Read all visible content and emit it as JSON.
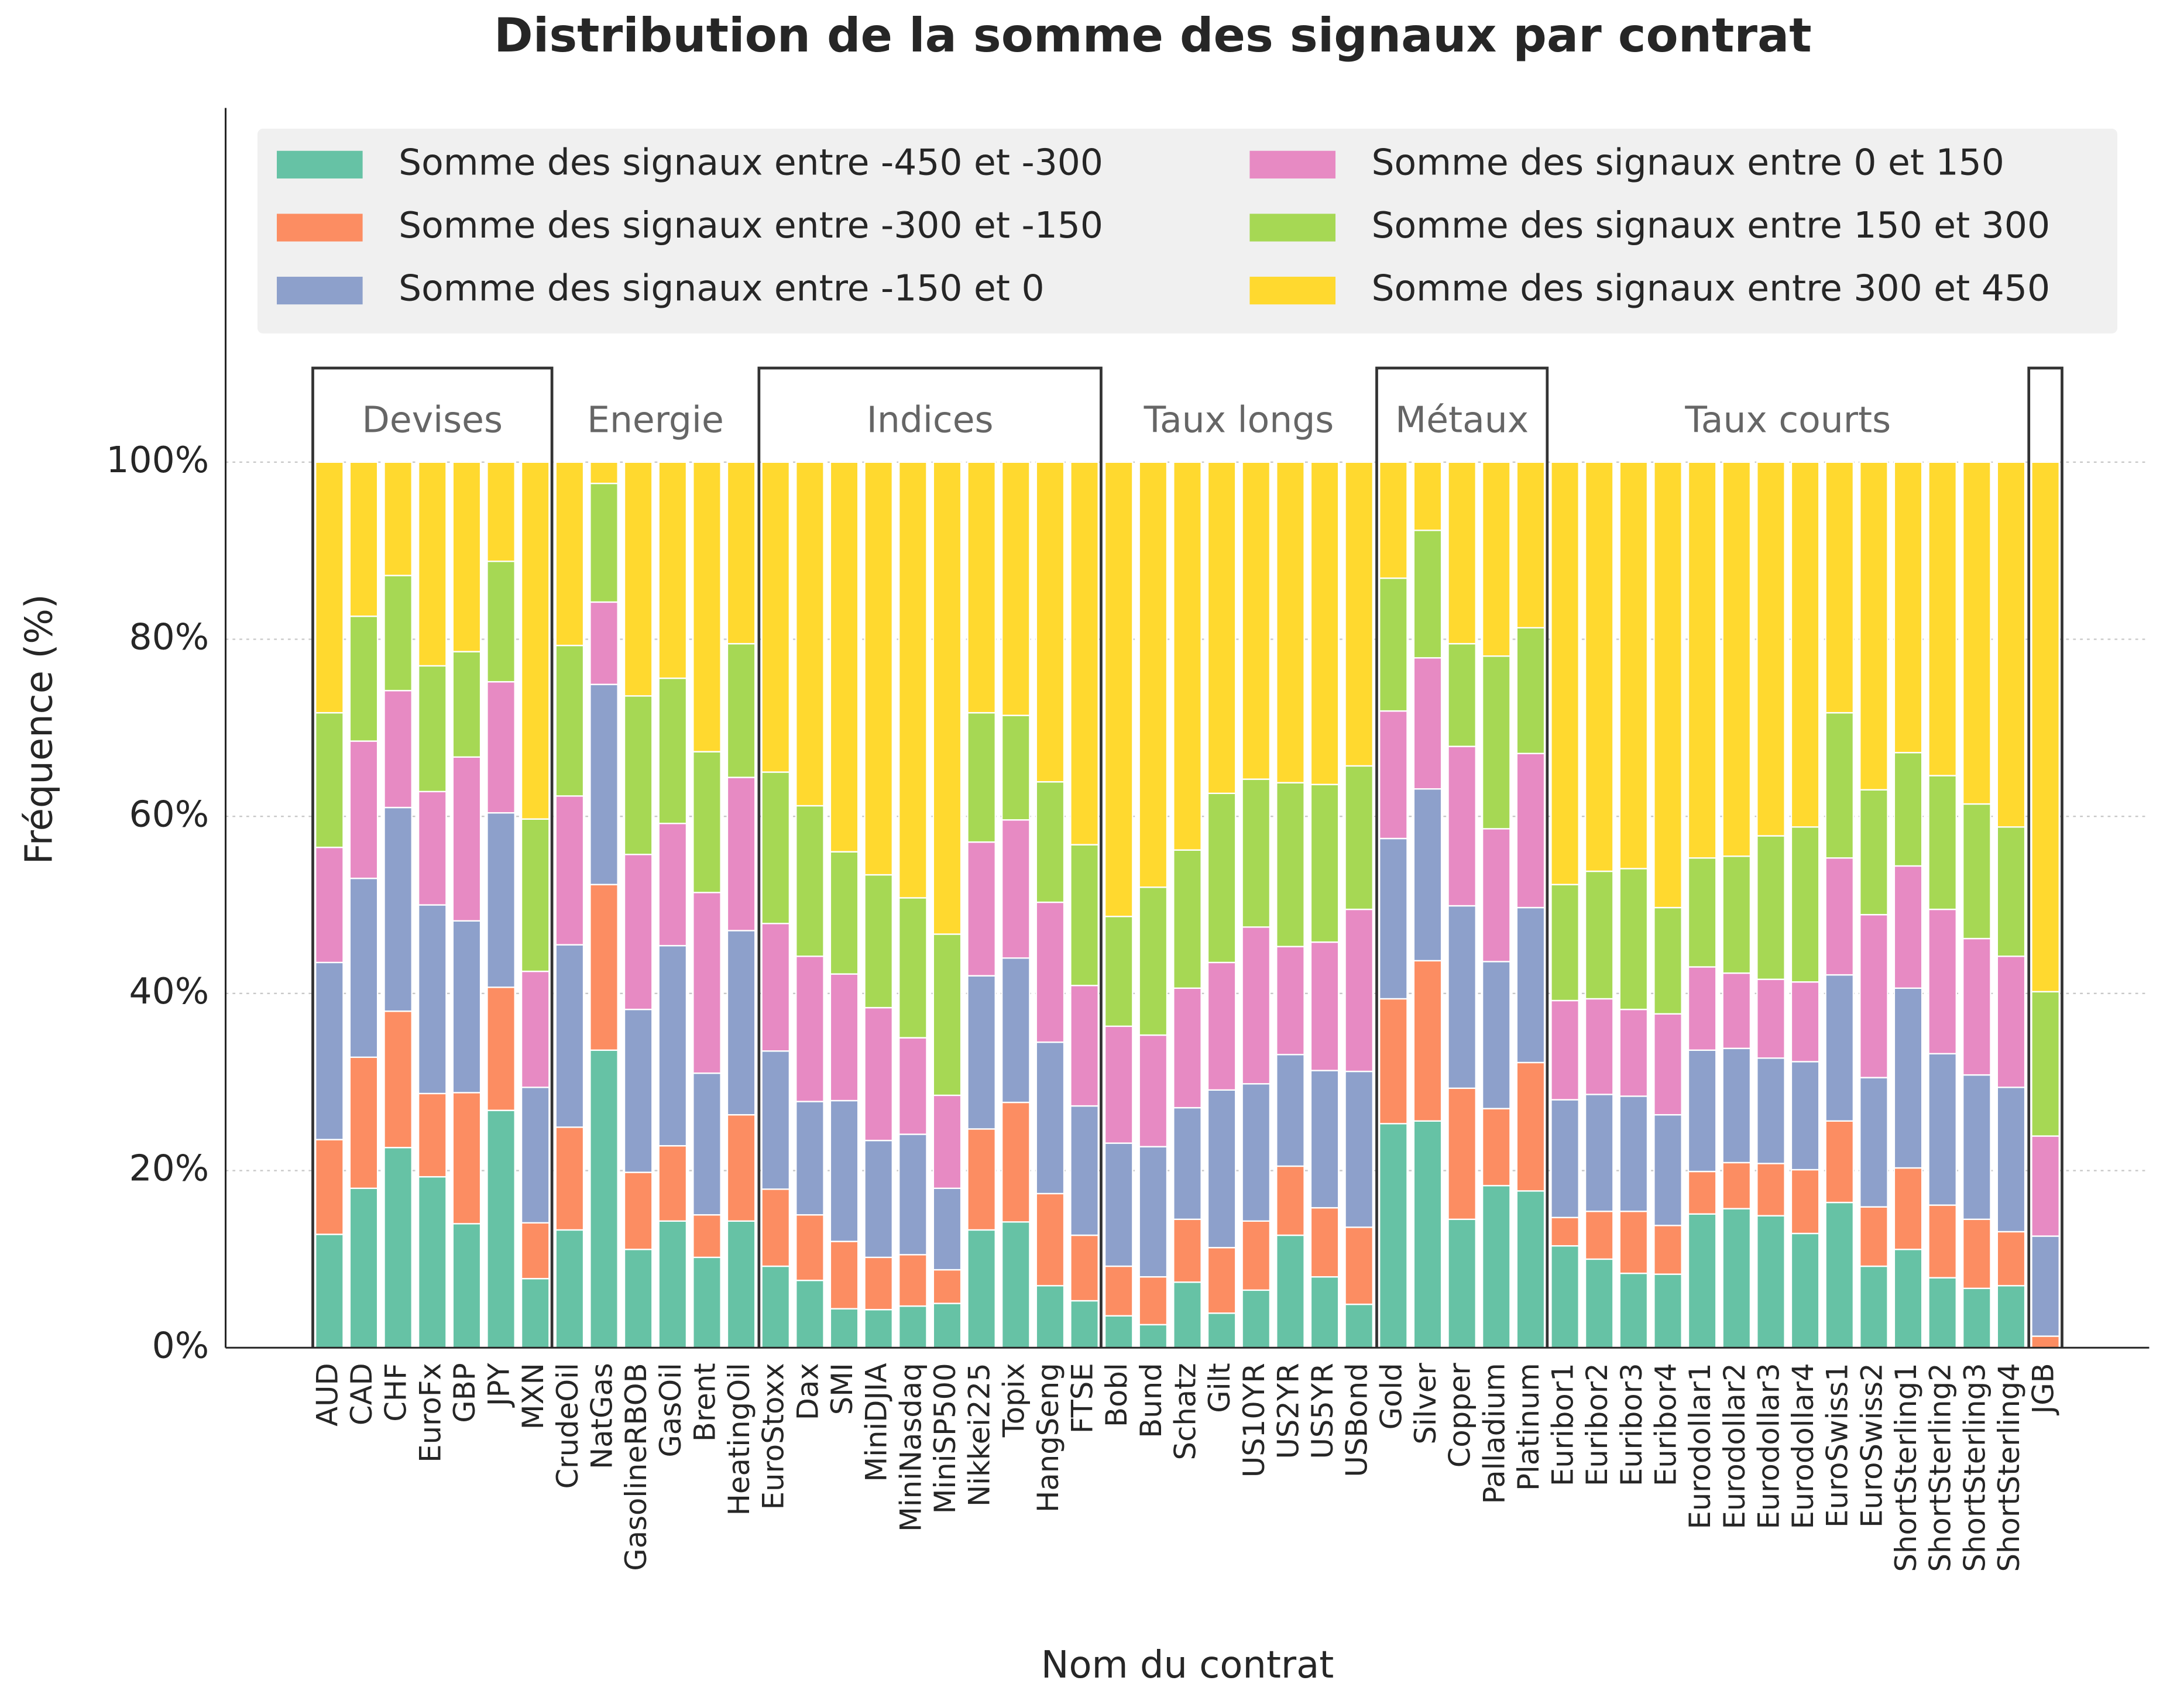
{
  "chart_data": {
    "type": "stacked_bar",
    "title": "Distribution de la somme des signaux par contrat",
    "x_label": "Nom du contrat",
    "y_label": "Fréquence (%)",
    "categories": [
      "AUD",
      "CAD",
      "CHF",
      "EuroFx",
      "GBP",
      "JPY",
      "MXN",
      "CrudeOil",
      "NatGas",
      "GasolineRBOB",
      "GasOil",
      "Brent",
      "HeatingOil",
      "EuroStoxx",
      "Dax",
      "SMI",
      "MiniDJIA",
      "MiniNasdaq",
      "MiniSP500",
      "Nikkei225",
      "Topix",
      "HangSeng",
      "FTSE",
      "Bobl",
      "Bund",
      "Schatz",
      "Gilt",
      "US10YR",
      "US2YR",
      "US5YR",
      "USBond",
      "Gold",
      "Silver",
      "Copper",
      "Palladium",
      "Platinum",
      "Euribor1",
      "Euribor2",
      "Euribor3",
      "Euribor4",
      "Eurodollar1",
      "Eurodollar2",
      "Eurodollar3",
      "Eurodollar4",
      "EuroSwiss1",
      "EuroSwiss2",
      "ShortSterling1",
      "ShortSterling2",
      "ShortSterling3",
      "ShortSterling4",
      "JGB"
    ],
    "groups": [
      {
        "label": "Devises",
        "count": 7
      },
      {
        "label": "Energie",
        "count": 6
      },
      {
        "label": "Indices",
        "count": 10
      },
      {
        "label": "Taux longs",
        "count": 8
      },
      {
        "label": "Métaux",
        "count": 5
      },
      {
        "label": "Taux courts",
        "count": 14
      },
      {
        "label": null,
        "count": 1
      }
    ],
    "series": [
      {
        "name": "Somme des signaux entre -450 et -300",
        "color": "#66c2a5",
        "values": [
          12.8,
          18.0,
          22.6,
          19.3,
          14.0,
          26.8,
          7.8,
          13.3,
          33.6,
          11.1,
          14.3,
          10.2,
          14.3,
          9.2,
          7.6,
          4.4,
          4.3,
          4.7,
          5.0,
          13.3,
          14.2,
          7.0,
          5.3,
          3.6,
          2.6,
          7.4,
          3.9,
          6.5,
          12.7,
          8.0,
          4.9,
          25.3,
          25.6,
          14.5,
          18.3,
          17.7,
          11.5,
          10.0,
          8.4,
          8.3,
          15.1,
          15.7,
          14.9,
          12.9,
          16.4,
          9.2,
          11.1,
          7.9,
          6.7,
          7.0,
          0
        ]
      },
      {
        "name": "Somme des signaux entre -300 et -150",
        "color": "#fc8d62",
        "values": [
          10.7,
          14.8,
          15.4,
          9.4,
          14.8,
          13.9,
          6.3,
          11.6,
          18.7,
          8.7,
          8.5,
          4.8,
          12.0,
          8.7,
          7.4,
          7.6,
          5.9,
          5.8,
          3.8,
          11.4,
          13.5,
          10.4,
          7.4,
          5.6,
          5.4,
          7.1,
          7.4,
          7.8,
          7.8,
          7.8,
          8.7,
          14.1,
          18.1,
          14.8,
          8.7,
          14.5,
          3.2,
          5.4,
          7.0,
          5.5,
          4.8,
          5.2,
          5.9,
          7.2,
          9.2,
          6.7,
          9.2,
          8.2,
          7.8,
          6.1,
          1.3
        ]
      },
      {
        "name": "Somme des signaux entre -150 et 0",
        "color": "#8da0cb",
        "values": [
          20.0,
          20.2,
          23.0,
          21.3,
          19.4,
          19.7,
          15.3,
          20.6,
          22.6,
          18.4,
          22.6,
          16.0,
          20.8,
          15.6,
          12.8,
          15.9,
          13.2,
          13.6,
          9.2,
          17.3,
          16.3,
          17.1,
          14.6,
          13.9,
          14.7,
          12.6,
          17.8,
          15.5,
          12.6,
          15.5,
          17.6,
          18.1,
          19.4,
          20.6,
          16.6,
          17.5,
          13.3,
          13.2,
          13.0,
          12.5,
          13.7,
          12.9,
          11.9,
          12.2,
          16.5,
          14.6,
          20.3,
          17.1,
          16.3,
          16.3,
          11.3
        ]
      },
      {
        "name": "Somme des signaux entre 0 et 150",
        "color": "#e78ac3",
        "values": [
          13.0,
          15.5,
          13.2,
          12.8,
          18.5,
          14.8,
          13.1,
          16.8,
          9.3,
          17.5,
          13.8,
          20.4,
          17.3,
          14.4,
          16.4,
          14.3,
          15.0,
          10.9,
          10.5,
          15.1,
          15.6,
          15.8,
          13.6,
          13.2,
          12.6,
          13.5,
          14.4,
          17.7,
          12.2,
          14.5,
          18.3,
          14.4,
          14.8,
          18.0,
          15.0,
          17.4,
          11.2,
          10.8,
          9.8,
          11.4,
          9.4,
          8.5,
          8.9,
          9.0,
          13.2,
          18.4,
          13.8,
          16.3,
          15.4,
          14.8,
          11.3
        ]
      },
      {
        "name": "Somme des signaux entre 150 et 300",
        "color": "#a6d854",
        "values": [
          15.2,
          14.1,
          13.0,
          14.2,
          11.9,
          13.6,
          17.2,
          17.0,
          13.4,
          17.9,
          16.4,
          15.9,
          15.1,
          17.1,
          17.0,
          13.8,
          15.0,
          15.8,
          18.2,
          14.6,
          11.8,
          13.6,
          15.9,
          12.4,
          16.7,
          15.6,
          19.1,
          16.7,
          18.5,
          17.8,
          16.2,
          15.0,
          14.4,
          11.6,
          19.5,
          14.2,
          13.1,
          14.4,
          15.9,
          12.0,
          12.3,
          13.2,
          16.2,
          17.5,
          16.4,
          14.1,
          12.8,
          15.1,
          15.2,
          14.6,
          16.3
        ]
      },
      {
        "name": "Somme des signaux entre 300 et 450",
        "color": "#ffd92f",
        "values": [
          28.3,
          17.4,
          12.8,
          23.0,
          21.4,
          11.2,
          40.3,
          20.7,
          2.4,
          26.4,
          24.4,
          32.7,
          20.5,
          35.0,
          38.8,
          44.0,
          46.6,
          49.2,
          53.3,
          28.3,
          28.6,
          36.1,
          43.2,
          51.3,
          48.0,
          43.8,
          37.4,
          35.8,
          36.2,
          36.4,
          34.3,
          13.1,
          7.7,
          20.5,
          21.9,
          18.7,
          47.7,
          46.2,
          45.9,
          50.3,
          44.7,
          44.5,
          42.2,
          41.2,
          28.3,
          37.0,
          32.8,
          35.4,
          38.6,
          41.2,
          59.8
        ]
      }
    ],
    "ylim": [
      0,
      140
    ],
    "yticks": [
      {
        "value": 0,
        "label": "0%"
      },
      {
        "value": 20,
        "label": "20%"
      },
      {
        "value": 40,
        "label": "40%"
      },
      {
        "value": 60,
        "label": "60%"
      },
      {
        "value": 80,
        "label": "80%"
      },
      {
        "value": 100,
        "label": "100%"
      }
    ],
    "grid": true,
    "legend": "top"
  }
}
